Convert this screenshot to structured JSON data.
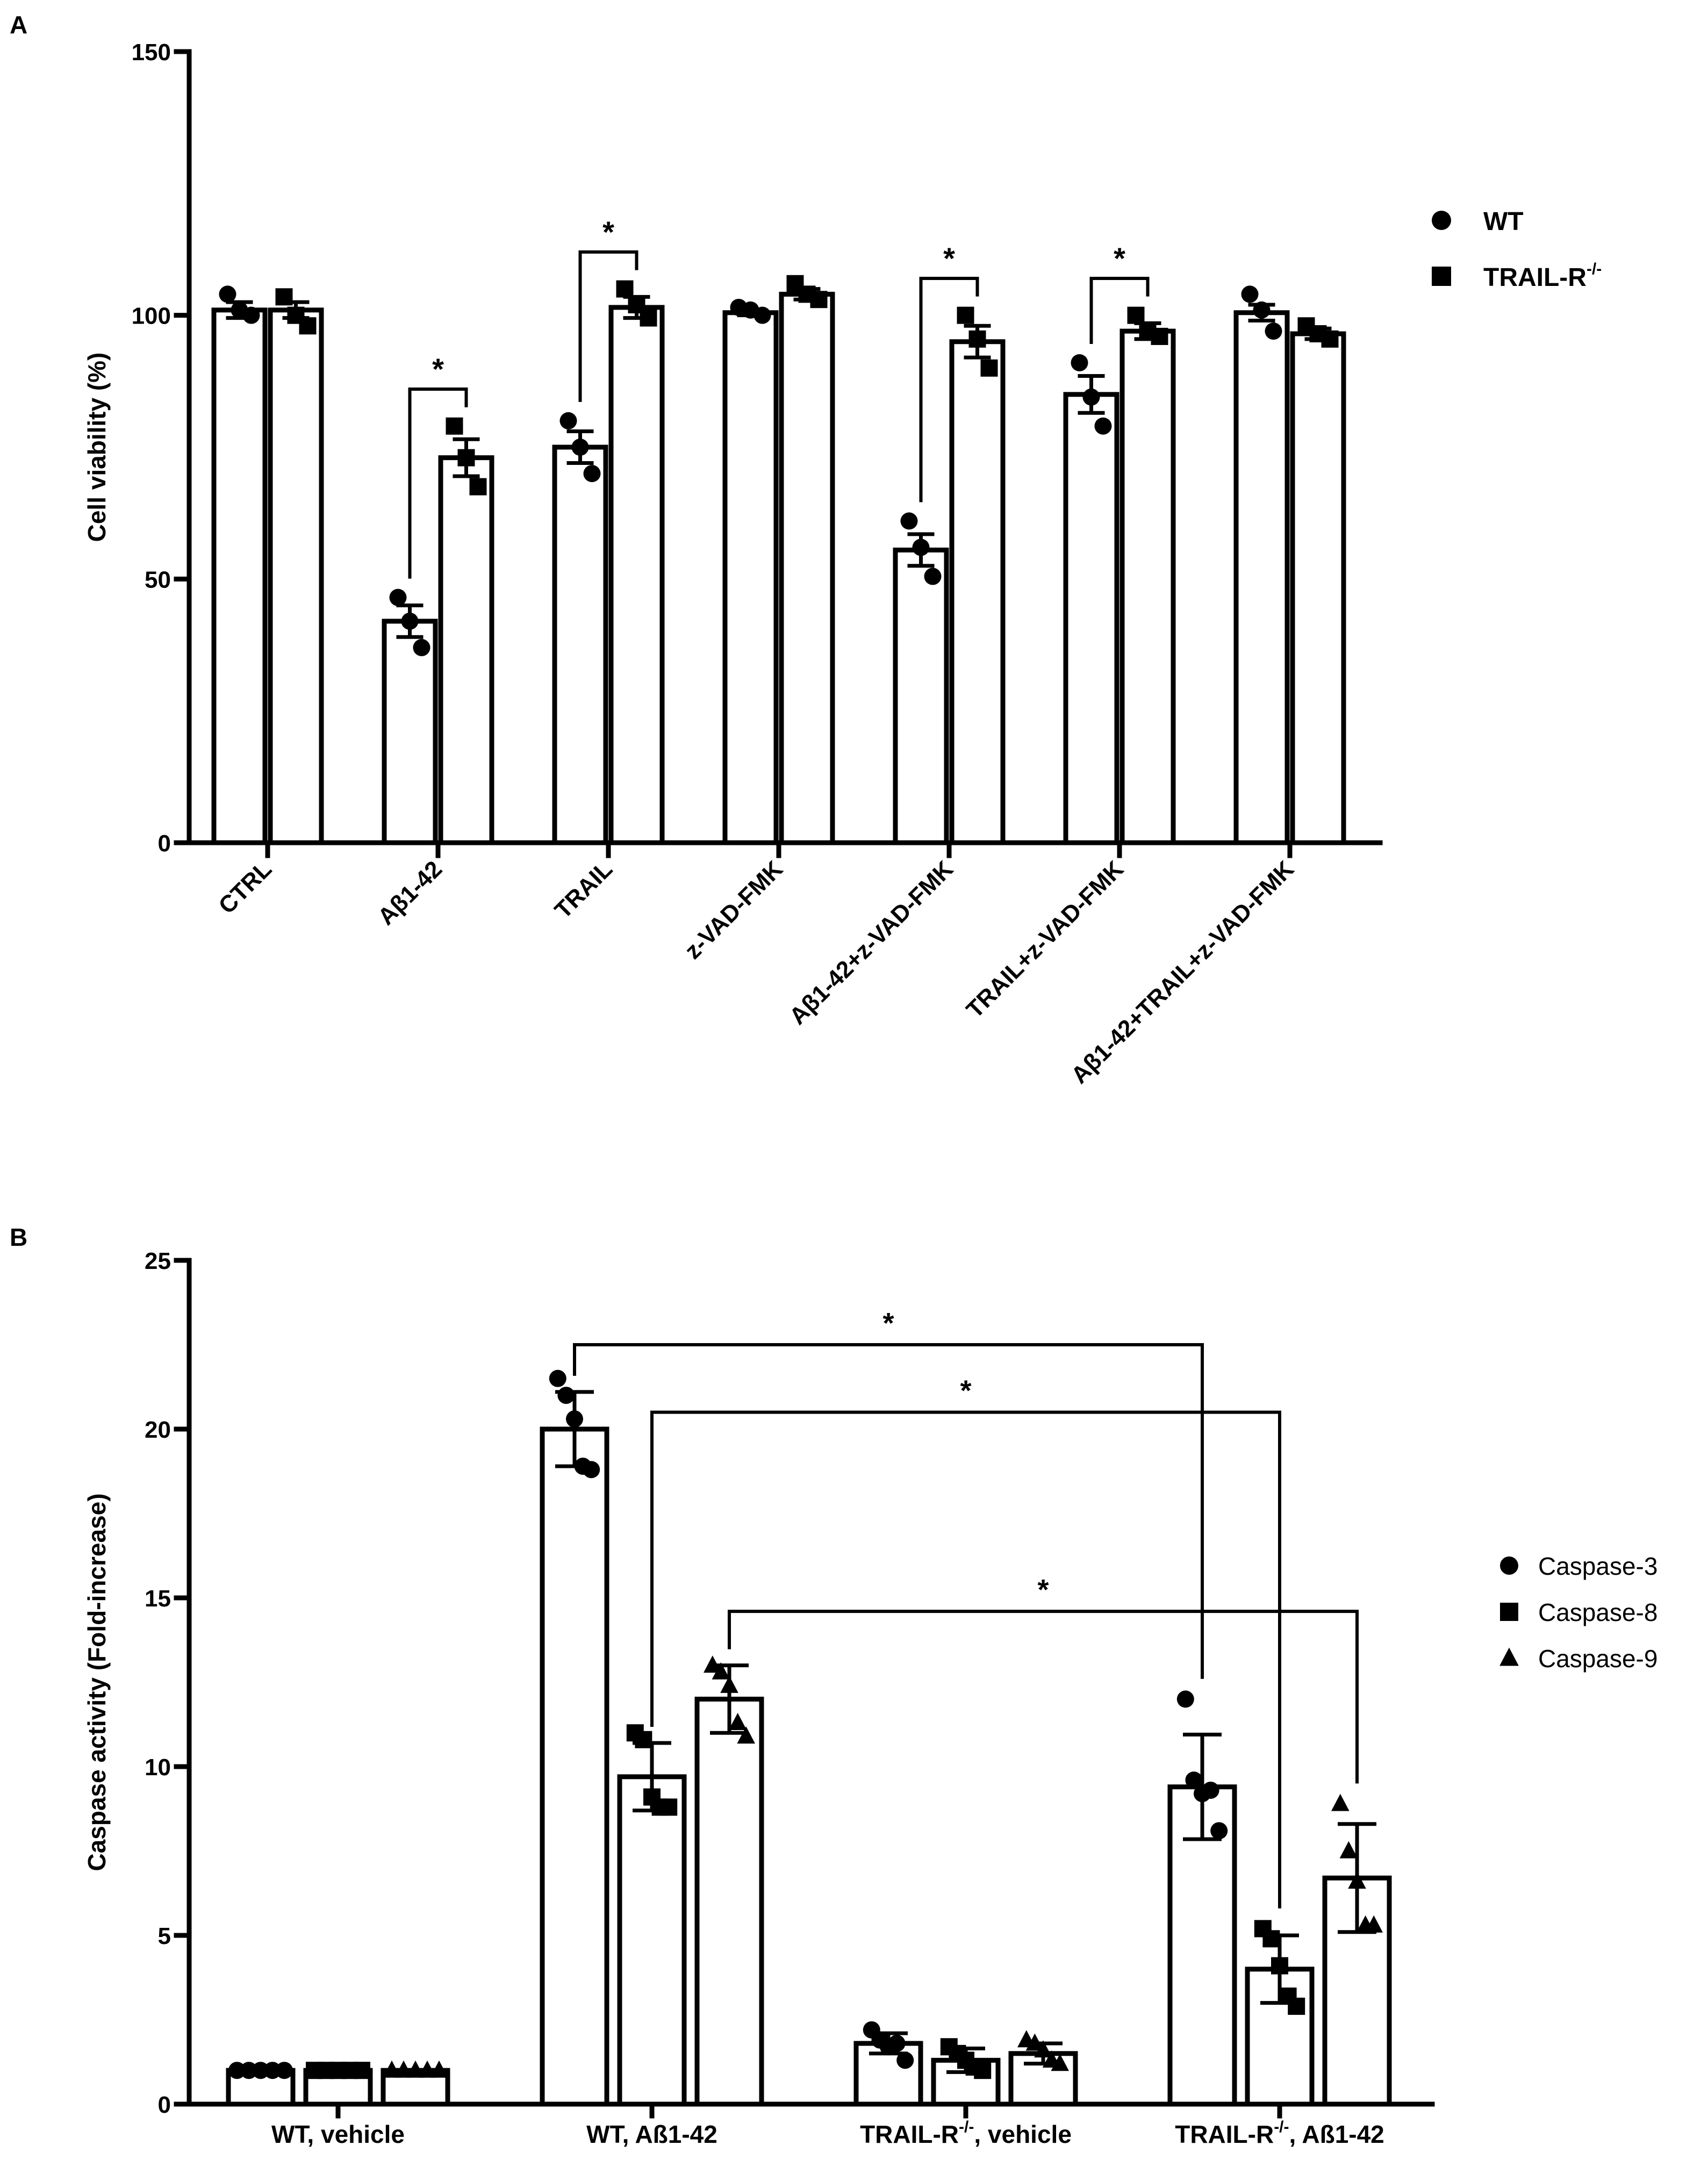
{
  "panels": {
    "a": {
      "label": "A"
    },
    "b": {
      "label": "B"
    }
  },
  "chart_data": [
    {
      "type": "bar",
      "panel": "A",
      "ylabel": "Cell viability (%)",
      "ylim": [
        0,
        150
      ],
      "yticks": [
        0,
        50,
        100,
        150
      ],
      "categories": [
        "CTRL",
        "Aβ1-42",
        "TRAIL",
        "z-VAD-FMK",
        "Aβ1-42+z-VAD-FMK",
        "TRAIL+z-VAD-FMK",
        "Aβ1-42+TRAIL+z-VAD-FMK"
      ],
      "legend_position": "right",
      "series": [
        {
          "name": "WT",
          "marker": "circle",
          "values": [
            101,
            42,
            75,
            100.5,
            55.5,
            85,
            100.5
          ],
          "sem": [
            1.5,
            3,
            3,
            0.5,
            3,
            3.5,
            1.5
          ],
          "points": [
            [
              104,
              101,
              100
            ],
            [
              46.5,
              42,
              37
            ],
            [
              80,
              75,
              70
            ],
            [
              101.5,
              101,
              100
            ],
            [
              61,
              56,
              50.5
            ],
            [
              91,
              84.5,
              79
            ],
            [
              104,
              101,
              97
            ]
          ]
        },
        {
          "name": "TRAIL-R",
          "name_sup": "-/-",
          "marker": "square",
          "values": [
            101,
            73,
            101.5,
            104,
            95,
            97,
            96.5
          ],
          "sem": [
            1.5,
            3.5,
            2,
            1,
            3,
            1.5,
            1
          ],
          "points": [
            [
              103.5,
              100,
              98
            ],
            [
              79,
              73,
              67.5
            ],
            [
              105,
              102,
              99.5
            ],
            [
              106,
              104,
              103
            ],
            [
              100,
              95.5,
              90
            ],
            [
              100,
              97,
              96
            ],
            [
              98,
              96.5,
              95.5
            ]
          ]
        }
      ],
      "significance": [
        {
          "category": "Aβ1-42",
          "text": "*"
        },
        {
          "category": "TRAIL",
          "text": "*"
        },
        {
          "category": "Aβ1-42+z-VAD-FMK",
          "text": "*"
        },
        {
          "category": "TRAIL+z-VAD-FMK",
          "text": "*"
        }
      ]
    },
    {
      "type": "bar",
      "panel": "B",
      "ylabel": "Caspase activity (Fold-increase)",
      "ylim": [
        0,
        25
      ],
      "yticks": [
        0,
        5,
        10,
        15,
        20,
        25
      ],
      "categories": [
        {
          "main": "WT, vehicle"
        },
        {
          "main": "WT, Aß1-42"
        },
        {
          "main": "TRAIL-R",
          "sup": "-/-",
          "suffix": ", vehicle"
        },
        {
          "main": "TRAIL-R",
          "sup": "-/-",
          "suffix": ", Aß1-42"
        }
      ],
      "legend_position": "right",
      "series": [
        {
          "name": "Caspase-3",
          "marker": "circle",
          "values": [
            1,
            20,
            1.8,
            9.4
          ],
          "sd": [
            0,
            1.1,
            0.3,
            1.55
          ],
          "points": [
            [
              1,
              1,
              1,
              1,
              1
            ],
            [
              21.5,
              21,
              20.3,
              18.9,
              18.8
            ],
            [
              2.2,
              1.9,
              1.7,
              1.8,
              1.3
            ],
            [
              12,
              9.6,
              9.2,
              9.3,
              8.1
            ]
          ]
        },
        {
          "name": "Caspase-8",
          "marker": "square",
          "values": [
            1,
            9.7,
            1.3,
            4.0
          ],
          "sd": [
            0,
            1.0,
            0.35,
            1.0
          ],
          "points": [
            [
              1,
              1,
              1,
              1,
              1
            ],
            [
              11.0,
              10.8,
              9.1,
              8.8,
              8.8
            ],
            [
              1.7,
              1.5,
              1.3,
              1.1,
              1.0
            ],
            [
              5.2,
              4.9,
              4.1,
              3.2,
              2.9
            ]
          ]
        },
        {
          "name": "Caspase-9",
          "marker": "triangle",
          "values": [
            1,
            12,
            1.5,
            6.7
          ],
          "sd": [
            0,
            1.0,
            0.3,
            1.6
          ],
          "points": [
            [
              1,
              1,
              1,
              1,
              1
            ],
            [
              13.0,
              12.8,
              12.4,
              11.3,
              10.9
            ],
            [
              1.9,
              1.8,
              1.6,
              1.3,
              1.2
            ],
            [
              8.9,
              7.5,
              6.6,
              5.3,
              5.3
            ]
          ]
        }
      ],
      "significance": [
        {
          "from": "WT, Aß1-42 / Caspase-3",
          "to": "TRAIL-R-/-, Aß1-42 / Caspase-3",
          "level": 22.5,
          "text": "*"
        },
        {
          "from": "WT, Aß1-42 / Caspase-8",
          "to": "TRAIL-R-/-, Aß1-42 / Caspase-8",
          "level": 20.5,
          "text": "*"
        },
        {
          "from": "WT, Aß1-42 / Caspase-9",
          "to": "TRAIL-R-/-, Aß1-42 / Caspase-9",
          "level": 14.6,
          "text": "*"
        }
      ]
    }
  ]
}
